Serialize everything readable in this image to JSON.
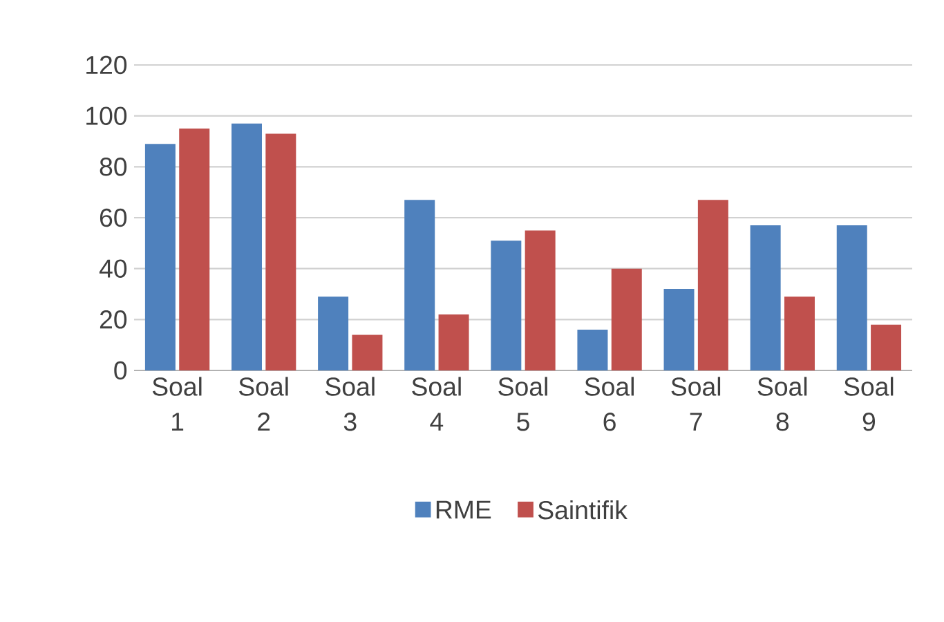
{
  "chart_data": {
    "type": "bar",
    "categories": [
      "Soal 1",
      "Soal 2",
      "Soal 3",
      "Soal 4",
      "Soal 5",
      "Soal 6",
      "Soal 7",
      "Soal 8",
      "Soal 9"
    ],
    "series": [
      {
        "name": "RME",
        "color": "#4f81bd",
        "values": [
          89,
          97,
          29,
          67,
          51,
          16,
          32,
          57,
          57
        ]
      },
      {
        "name": "Saintifik",
        "color": "#c0504d",
        "values": [
          95,
          93,
          14,
          22,
          55,
          40,
          67,
          29,
          18
        ]
      }
    ],
    "ylim": [
      0,
      120
    ],
    "yticks": [
      0,
      20,
      40,
      60,
      80,
      100,
      120
    ],
    "grid": "y",
    "legend": "bottom"
  }
}
